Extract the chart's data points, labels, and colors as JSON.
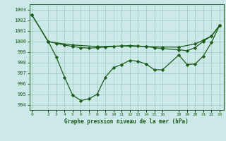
{
  "background_color": "#cce8e8",
  "line_color": "#1a5c1a",
  "grid_color": "#99ccbb",
  "xlabel": "Graphe pression niveau de la mer (hPa)",
  "ylim": [
    993.5,
    1003.5
  ],
  "yticks": [
    994,
    995,
    996,
    997,
    998,
    999,
    1000,
    1001,
    1002,
    1003
  ],
  "xticks": [
    0,
    2,
    3,
    4,
    5,
    6,
    7,
    8,
    9,
    10,
    11,
    12,
    13,
    14,
    15,
    16,
    18,
    19,
    20,
    21,
    22,
    23
  ],
  "xlim": [
    -0.3,
    23.5
  ],
  "line1_x": [
    0,
    2,
    5,
    8,
    11,
    14,
    16,
    18,
    20,
    21,
    22,
    23
  ],
  "line1_y": [
    1002.5,
    999.95,
    999.65,
    999.5,
    999.55,
    999.5,
    999.45,
    999.45,
    999.75,
    1000.1,
    1000.5,
    1001.5
  ],
  "line2_x": [
    0,
    2,
    3,
    4,
    5,
    6,
    7,
    8,
    9,
    10,
    11,
    12,
    13,
    14,
    15,
    16,
    18,
    19,
    20,
    21,
    22,
    23
  ],
  "line2_y": [
    1002.5,
    1000.0,
    999.8,
    999.65,
    999.5,
    999.4,
    999.35,
    999.4,
    999.45,
    999.5,
    999.55,
    999.6,
    999.55,
    999.5,
    999.4,
    999.3,
    999.2,
    999.1,
    999.4,
    1000.0,
    1000.5,
    1001.5
  ],
  "line3_x": [
    2,
    3,
    4,
    5,
    6,
    7,
    8,
    9,
    10,
    11,
    12,
    13,
    14,
    15,
    16,
    18,
    19,
    20,
    21,
    22,
    23
  ],
  "line3_y": [
    1000.0,
    998.5,
    996.6,
    994.9,
    994.4,
    994.55,
    995.0,
    996.6,
    997.5,
    997.8,
    998.2,
    998.1,
    997.85,
    997.3,
    997.3,
    998.7,
    997.8,
    997.85,
    998.6,
    999.9,
    1001.5
  ]
}
